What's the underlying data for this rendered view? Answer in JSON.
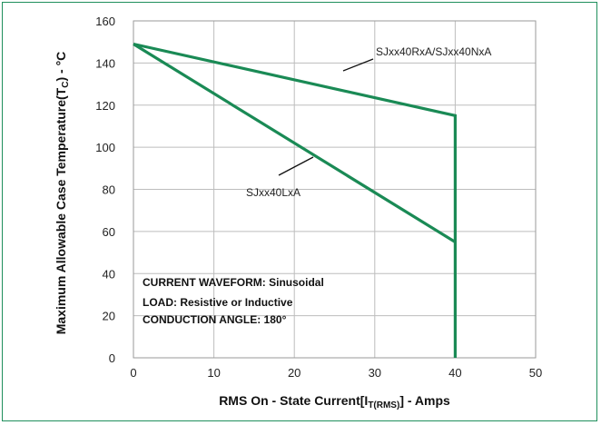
{
  "colors": {
    "series": "#1a8a55",
    "frame": "#1f8f5c",
    "grid": "#bdbdbd"
  },
  "chart_data": {
    "type": "line",
    "xlabel": {
      "main": "RMS On - State Current[I",
      "sub": "T(RMS)",
      "tail": "] - Amps"
    },
    "ylabel": {
      "main": "Maximum Allowable  Case Temperature(T",
      "sub": "C",
      "tail": ") - °C"
    },
    "xlim": [
      0,
      50
    ],
    "ylim": [
      0,
      160
    ],
    "xticks": [
      0,
      10,
      20,
      30,
      40,
      50
    ],
    "yticks": [
      0,
      20,
      40,
      60,
      80,
      100,
      120,
      140,
      160
    ],
    "grid": true,
    "series": [
      {
        "name": "SJxx40RxA/SJxx40NxA",
        "x": [
          0,
          40,
          40
        ],
        "y": [
          149,
          115,
          0
        ]
      },
      {
        "name": "SJxx40LxA",
        "x": [
          0,
          40
        ],
        "y": [
          149,
          55
        ]
      }
    ],
    "annotations": [
      "CURRENT WAVEFORM: Sinusoidal",
      "LOAD: Resistive or Inductive",
      "CONDUCTION ANGLE: 180°"
    ]
  }
}
